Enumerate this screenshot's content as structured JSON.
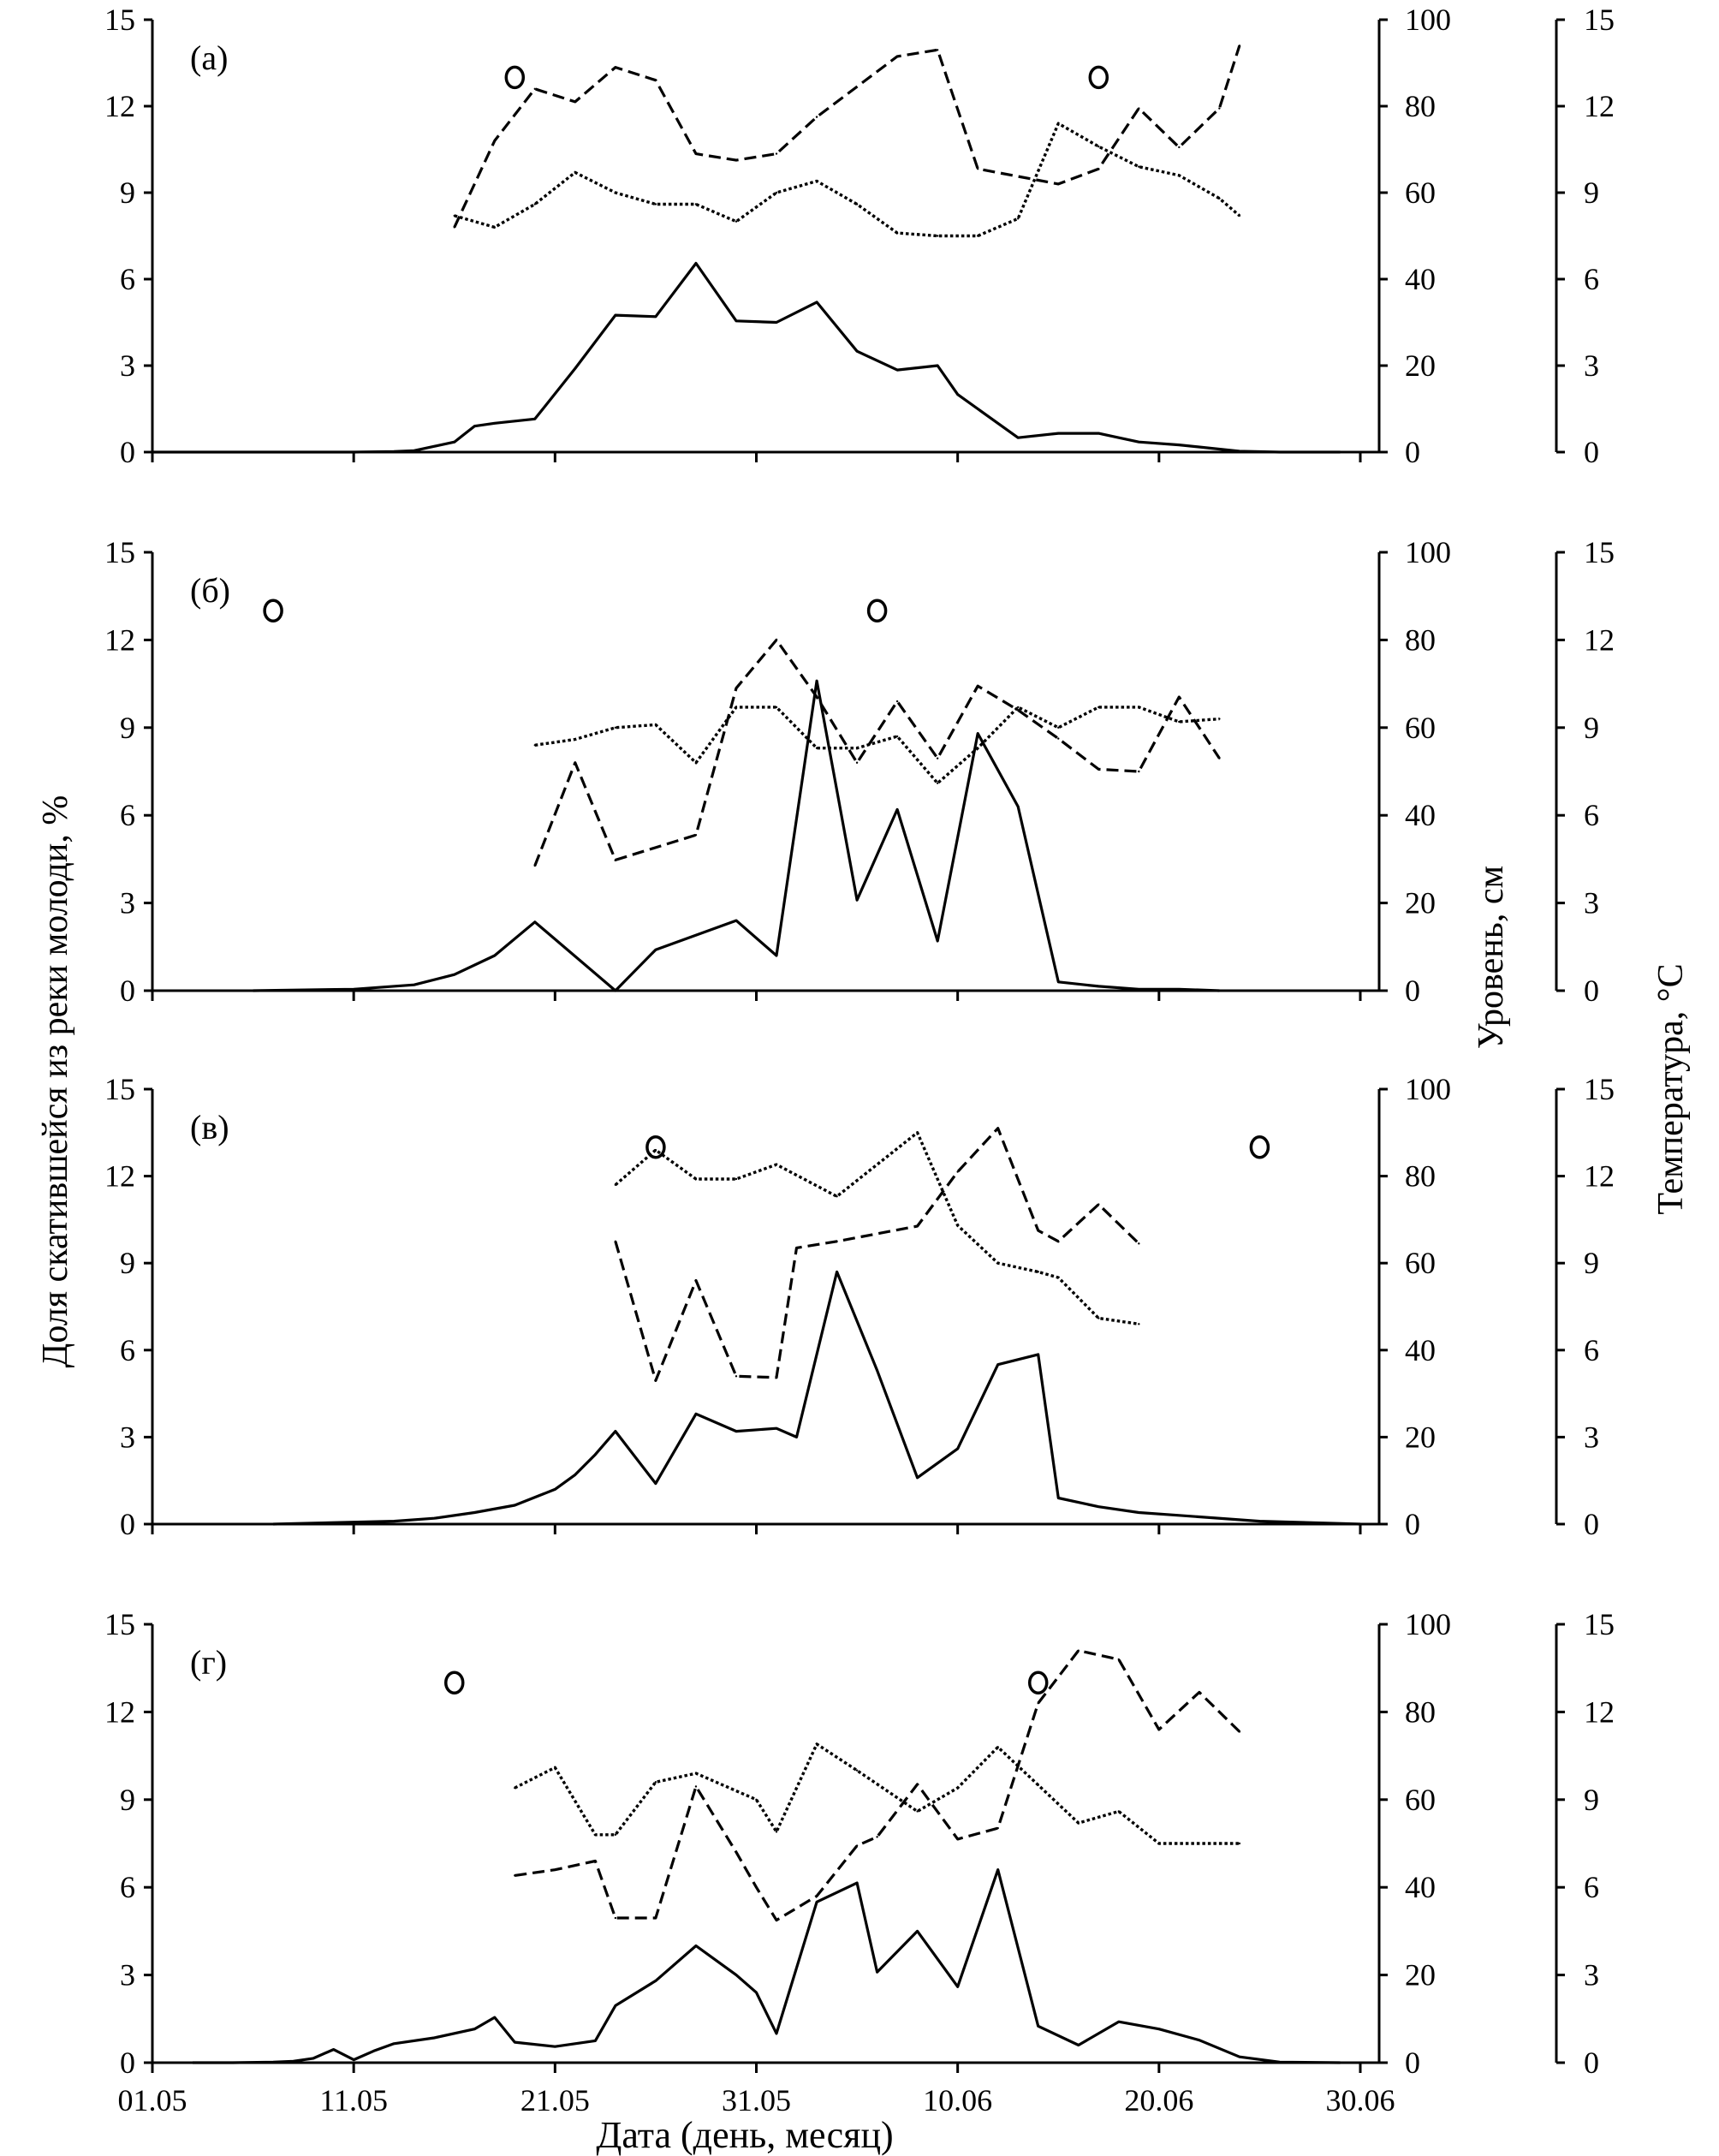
{
  "chart_data": {
    "type": "line",
    "xlabel": "Дата (день, месяц)",
    "ylabel_left": "Доля скатившейся из реки молоди, %",
    "ylabel_right1": "Уровень, см",
    "ylabel_right2": "Температура, °С",
    "x_unit": "days since 01.05",
    "x_range": [
      0,
      60
    ],
    "x_ticks": [
      {
        "day": 0,
        "label": "01.05"
      },
      {
        "day": 10,
        "label": "11.05"
      },
      {
        "day": 20,
        "label": "21.05"
      },
      {
        "day": 30,
        "label": "31.05"
      },
      {
        "day": 40,
        "label": "10.06"
      },
      {
        "day": 50,
        "label": "20.06"
      },
      {
        "day": 60,
        "label": "30.06"
      }
    ],
    "left_ticks": [
      "0",
      "3",
      "6",
      "9",
      "12",
      "15"
    ],
    "left_range": [
      0,
      15
    ],
    "level_ticks": [
      "0",
      "20",
      "40",
      "60",
      "80",
      "100"
    ],
    "level_range": [
      0,
      100
    ],
    "temp_ticks": [
      "0",
      "3",
      "6",
      "9",
      "12",
      "15"
    ],
    "temp_range": [
      0,
      15
    ],
    "series_styles": {
      "share": "solid",
      "level": "dashed",
      "temperature": "dotted"
    },
    "panels": [
      {
        "label": "(а)",
        "share": [
          [
            0,
            0
          ],
          [
            10,
            0
          ],
          [
            12,
            0.02
          ],
          [
            13,
            0.05
          ],
          [
            15,
            0.35
          ],
          [
            16,
            0.9
          ],
          [
            17,
            1.0
          ],
          [
            19,
            1.15
          ],
          [
            21,
            2.9
          ],
          [
            23,
            4.75
          ],
          [
            25,
            4.7
          ],
          [
            27,
            6.55
          ],
          [
            29,
            4.55
          ],
          [
            31,
            4.5
          ],
          [
            33,
            5.2
          ],
          [
            35,
            3.5
          ],
          [
            37,
            2.85
          ],
          [
            39,
            3.0
          ],
          [
            40,
            2.0
          ],
          [
            43,
            0.5
          ],
          [
            45,
            0.65
          ],
          [
            47,
            0.65
          ],
          [
            49,
            0.35
          ],
          [
            51,
            0.25
          ],
          [
            54,
            0.03
          ],
          [
            56,
            0
          ],
          [
            59,
            0
          ]
        ],
        "level": [
          [
            15,
            52
          ],
          [
            17,
            72
          ],
          [
            19,
            84
          ],
          [
            21,
            81
          ],
          [
            23,
            89
          ],
          [
            25,
            86
          ],
          [
            27,
            69
          ],
          [
            29,
            67.5
          ],
          [
            31,
            69
          ],
          [
            33,
            77.5
          ],
          [
            37,
            91.5
          ],
          [
            39,
            93
          ],
          [
            41,
            65.5
          ],
          [
            45,
            62
          ],
          [
            47,
            65.5
          ],
          [
            49,
            79.5
          ],
          [
            51,
            70.5
          ],
          [
            53,
            79.5
          ],
          [
            54,
            94
          ]
        ],
        "temperature": [
          [
            15,
            8.2
          ],
          [
            17,
            7.8
          ],
          [
            19,
            8.6
          ],
          [
            21,
            9.7
          ],
          [
            23,
            9.0
          ],
          [
            25,
            8.6
          ],
          [
            27,
            8.6
          ],
          [
            29,
            8.0
          ],
          [
            31,
            9.0
          ],
          [
            33,
            9.4
          ],
          [
            35,
            8.6
          ],
          [
            37,
            7.6
          ],
          [
            39,
            7.5
          ],
          [
            41,
            7.5
          ],
          [
            43,
            8.1
          ],
          [
            45,
            11.4
          ],
          [
            47,
            10.6
          ],
          [
            49,
            9.9
          ],
          [
            51,
            9.6
          ],
          [
            53,
            8.8
          ],
          [
            54,
            8.2
          ]
        ],
        "markers": [
          [
            18,
            13
          ],
          [
            47,
            13
          ]
        ]
      },
      {
        "label": "(б)",
        "share": [
          [
            5,
            0
          ],
          [
            10,
            0.05
          ],
          [
            13,
            0.2
          ],
          [
            15,
            0.55
          ],
          [
            17,
            1.2
          ],
          [
            19,
            2.35
          ],
          [
            23,
            0
          ],
          [
            25,
            1.4
          ],
          [
            29,
            2.4
          ],
          [
            31,
            1.2
          ],
          [
            33,
            10.6
          ],
          [
            35,
            3.1
          ],
          [
            37,
            6.2
          ],
          [
            39,
            1.7
          ],
          [
            41,
            8.8
          ],
          [
            43,
            6.3
          ],
          [
            45,
            0.3
          ],
          [
            47,
            0.15
          ],
          [
            49,
            0.05
          ],
          [
            51,
            0.05
          ],
          [
            53,
            0
          ]
        ],
        "level": [
          [
            19,
            28.5
          ],
          [
            21,
            52
          ],
          [
            23,
            29.8
          ],
          [
            27,
            35.5
          ],
          [
            29,
            69
          ],
          [
            31,
            80
          ],
          [
            33,
            67
          ],
          [
            35,
            52
          ],
          [
            37,
            66
          ],
          [
            39,
            53
          ],
          [
            41,
            69.5
          ],
          [
            43,
            64
          ],
          [
            45,
            57.5
          ],
          [
            47,
            50.5
          ],
          [
            49,
            50
          ],
          [
            51,
            67
          ],
          [
            53,
            53
          ]
        ],
        "temperature": [
          [
            19,
            8.4
          ],
          [
            21,
            8.6
          ],
          [
            23,
            9.0
          ],
          [
            25,
            9.1
          ],
          [
            27,
            7.8
          ],
          [
            29,
            9.7
          ],
          [
            31,
            9.7
          ],
          [
            33,
            8.3
          ],
          [
            35,
            8.3
          ],
          [
            37,
            8.7
          ],
          [
            39,
            7.1
          ],
          [
            41,
            8.3
          ],
          [
            43,
            9.7
          ],
          [
            45,
            9.0
          ],
          [
            47,
            9.7
          ],
          [
            49,
            9.7
          ],
          [
            51,
            9.2
          ],
          [
            53,
            9.3
          ]
        ],
        "markers": [
          [
            6,
            13
          ],
          [
            36,
            13
          ]
        ]
      },
      {
        "label": "(в)",
        "share": [
          [
            6,
            0
          ],
          [
            12,
            0.1
          ],
          [
            14,
            0.2
          ],
          [
            16,
            0.4
          ],
          [
            18,
            0.65
          ],
          [
            20,
            1.2
          ],
          [
            21,
            1.7
          ],
          [
            22,
            2.4
          ],
          [
            23,
            3.2
          ],
          [
            25,
            1.4
          ],
          [
            27,
            3.8
          ],
          [
            29,
            3.2
          ],
          [
            31,
            3.3
          ],
          [
            32,
            3.0
          ],
          [
            34,
            8.7
          ],
          [
            36,
            5.3
          ],
          [
            38,
            1.6
          ],
          [
            40,
            2.6
          ],
          [
            42,
            5.5
          ],
          [
            44,
            5.85
          ],
          [
            45,
            0.9
          ],
          [
            47,
            0.6
          ],
          [
            49,
            0.4
          ],
          [
            51,
            0.3
          ],
          [
            55,
            0.1
          ],
          [
            60,
            0
          ]
        ],
        "level": [
          [
            23,
            65
          ],
          [
            25,
            33
          ],
          [
            27,
            56
          ],
          [
            29,
            34
          ],
          [
            31,
            33.7
          ],
          [
            32,
            63.5
          ],
          [
            34,
            65
          ],
          [
            38,
            68.5
          ],
          [
            40,
            81
          ],
          [
            42,
            91
          ],
          [
            44,
            67.5
          ],
          [
            45,
            65
          ],
          [
            47,
            73.5
          ],
          [
            49,
            64.5
          ]
        ],
        "temperature": [
          [
            23,
            11.7
          ],
          [
            25,
            12.9
          ],
          [
            27,
            11.9
          ],
          [
            29,
            11.9
          ],
          [
            31,
            12.4
          ],
          [
            34,
            11.3
          ],
          [
            38,
            13.5
          ],
          [
            40,
            10.3
          ],
          [
            42,
            9.0
          ],
          [
            44,
            8.7
          ],
          [
            45,
            8.5
          ],
          [
            47,
            7.1
          ],
          [
            49,
            6.9
          ]
        ],
        "markers": [
          [
            25,
            13
          ],
          [
            55,
            13
          ]
        ]
      },
      {
        "label": "(г)",
        "share": [
          [
            2,
            0
          ],
          [
            4,
            0
          ],
          [
            6,
            0.02
          ],
          [
            7,
            0.05
          ],
          [
            8,
            0.15
          ],
          [
            9,
            0.45
          ],
          [
            10,
            0.1
          ],
          [
            11,
            0.4
          ],
          [
            12,
            0.65
          ],
          [
            14,
            0.85
          ],
          [
            16,
            1.15
          ],
          [
            17,
            1.55
          ],
          [
            18,
            0.7
          ],
          [
            20,
            0.55
          ],
          [
            22,
            0.75
          ],
          [
            23,
            1.95
          ],
          [
            25,
            2.8
          ],
          [
            27,
            4.0
          ],
          [
            29,
            3.0
          ],
          [
            30,
            2.4
          ],
          [
            31,
            1.0
          ],
          [
            33,
            5.5
          ],
          [
            35,
            6.15
          ],
          [
            36,
            3.1
          ],
          [
            38,
            4.5
          ],
          [
            40,
            2.6
          ],
          [
            42,
            6.6
          ],
          [
            44,
            1.25
          ],
          [
            46,
            0.6
          ],
          [
            48,
            1.4
          ],
          [
            50,
            1.15
          ],
          [
            52,
            0.77
          ],
          [
            54,
            0.2
          ],
          [
            56,
            0.02
          ],
          [
            59,
            0
          ]
        ],
        "level": [
          [
            18,
            42.7
          ],
          [
            20,
            44
          ],
          [
            22,
            46
          ],
          [
            23,
            33
          ],
          [
            25,
            33
          ],
          [
            27,
            63
          ],
          [
            29,
            48
          ],
          [
            30,
            40
          ],
          [
            31,
            32.5
          ],
          [
            33,
            38
          ],
          [
            35,
            49.5
          ],
          [
            36,
            51.5
          ],
          [
            38,
            63.5
          ],
          [
            40,
            51
          ],
          [
            42,
            53.5
          ],
          [
            44,
            82
          ],
          [
            46,
            94
          ],
          [
            48,
            92
          ],
          [
            50,
            76
          ],
          [
            52,
            84.5
          ],
          [
            54,
            75.5
          ]
        ],
        "temperature": [
          [
            18,
            9.4
          ],
          [
            20,
            10.1
          ],
          [
            22,
            7.8
          ],
          [
            23,
            7.8
          ],
          [
            25,
            9.6
          ],
          [
            27,
            9.9
          ],
          [
            30,
            9.0
          ],
          [
            31,
            7.9
          ],
          [
            33,
            10.9
          ],
          [
            35,
            10.0
          ],
          [
            38,
            8.6
          ],
          [
            40,
            9.4
          ],
          [
            42,
            10.8
          ],
          [
            44,
            9.5
          ],
          [
            46,
            8.2
          ],
          [
            48,
            8.6
          ],
          [
            50,
            7.5
          ],
          [
            54,
            7.5
          ]
        ],
        "markers": [
          [
            15,
            13
          ],
          [
            44,
            13
          ]
        ]
      }
    ]
  }
}
